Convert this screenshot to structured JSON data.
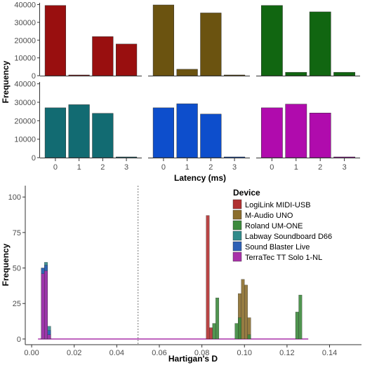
{
  "chart_data": [
    {
      "type": "bar",
      "xlabel": "Latency (ms)",
      "ylabel": "Frequency",
      "categories": [
        0,
        1,
        2,
        3
      ],
      "xticks": [
        "0",
        "1",
        "2",
        "3"
      ],
      "yticks": [
        "0",
        "10000",
        "20000",
        "30000",
        "40000"
      ],
      "ylim": [
        0,
        41000
      ],
      "grid": false,
      "facets": [
        {
          "row": 0,
          "col": 0,
          "color": "#990F0F",
          "values": [
            39500,
            300,
            22000,
            17800
          ]
        },
        {
          "row": 0,
          "col": 1,
          "color": "#6B5310",
          "values": [
            39800,
            3600,
            35300,
            400
          ]
        },
        {
          "row": 0,
          "col": 2,
          "color": "#116611",
          "values": [
            39500,
            1900,
            35900,
            1900
          ]
        },
        {
          "row": 1,
          "col": 0,
          "color": "#126B72",
          "values": [
            27000,
            28700,
            24000,
            0
          ]
        },
        {
          "row": 1,
          "col": 1,
          "color": "#0D4ECC",
          "values": [
            27000,
            29200,
            23600,
            0
          ]
        },
        {
          "row": 1,
          "col": 2,
          "color": "#B00BAD",
          "values": [
            27000,
            29000,
            24200,
            0
          ]
        }
      ]
    },
    {
      "type": "bar",
      "subtype": "histogram",
      "xlabel": "Hartigan's D",
      "ylabel": "Frequency",
      "xticks": [
        "0.00",
        "0.02",
        "0.04",
        "0.06",
        "0.08",
        "0.10",
        "0.12",
        "0.14"
      ],
      "yticks": [
        "0",
        "25",
        "50",
        "75",
        "100"
      ],
      "xlim": [
        -0.003,
        0.155
      ],
      "ylim": [
        -4,
        108
      ],
      "bin_width": 0.0015,
      "vline": 0.05,
      "legend": {
        "title": "Device",
        "position": "right-top"
      },
      "series": [
        {
          "name": "LogiLink MIDI-USB",
          "color": "#B03030",
          "bars": [
            [
              0.082,
              87
            ],
            [
              0.0835,
              8
            ]
          ]
        },
        {
          "name": "M-Audio UNO",
          "color": "#8B6E2E",
          "bars": [
            [
              0.097,
              32
            ],
            [
              0.0985,
              42
            ],
            [
              0.1,
              38
            ],
            [
              0.1015,
              15
            ]
          ]
        },
        {
          "name": "Roland UM-ONE",
          "color": "#3D8A3D",
          "bars": [
            [
              0.085,
              11
            ],
            [
              0.0865,
              29
            ],
            [
              0.0955,
              11
            ],
            [
              0.097,
              15
            ],
            [
              0.1015,
              3
            ],
            [
              0.124,
              19
            ],
            [
              0.1255,
              31
            ]
          ]
        },
        {
          "name": "Labway Soundboard D66",
          "color": "#318A8A",
          "bars": [
            [
              0.0045,
              50
            ],
            [
              0.006,
              54
            ],
            [
              0.0075,
              9
            ]
          ]
        },
        {
          "name": "Sound Blaster Live",
          "color": "#2E60B5",
          "bars": [
            [
              0.0045,
              50
            ],
            [
              0.006,
              52
            ],
            [
              0.0075,
              6
            ]
          ]
        },
        {
          "name": "TerraTec TT Solo 1-NL",
          "color": "#A932A9",
          "bars": [
            [
              0.0045,
              46
            ],
            [
              0.006,
              48
            ],
            [
              0.0075,
              3
            ]
          ]
        }
      ]
    }
  ]
}
